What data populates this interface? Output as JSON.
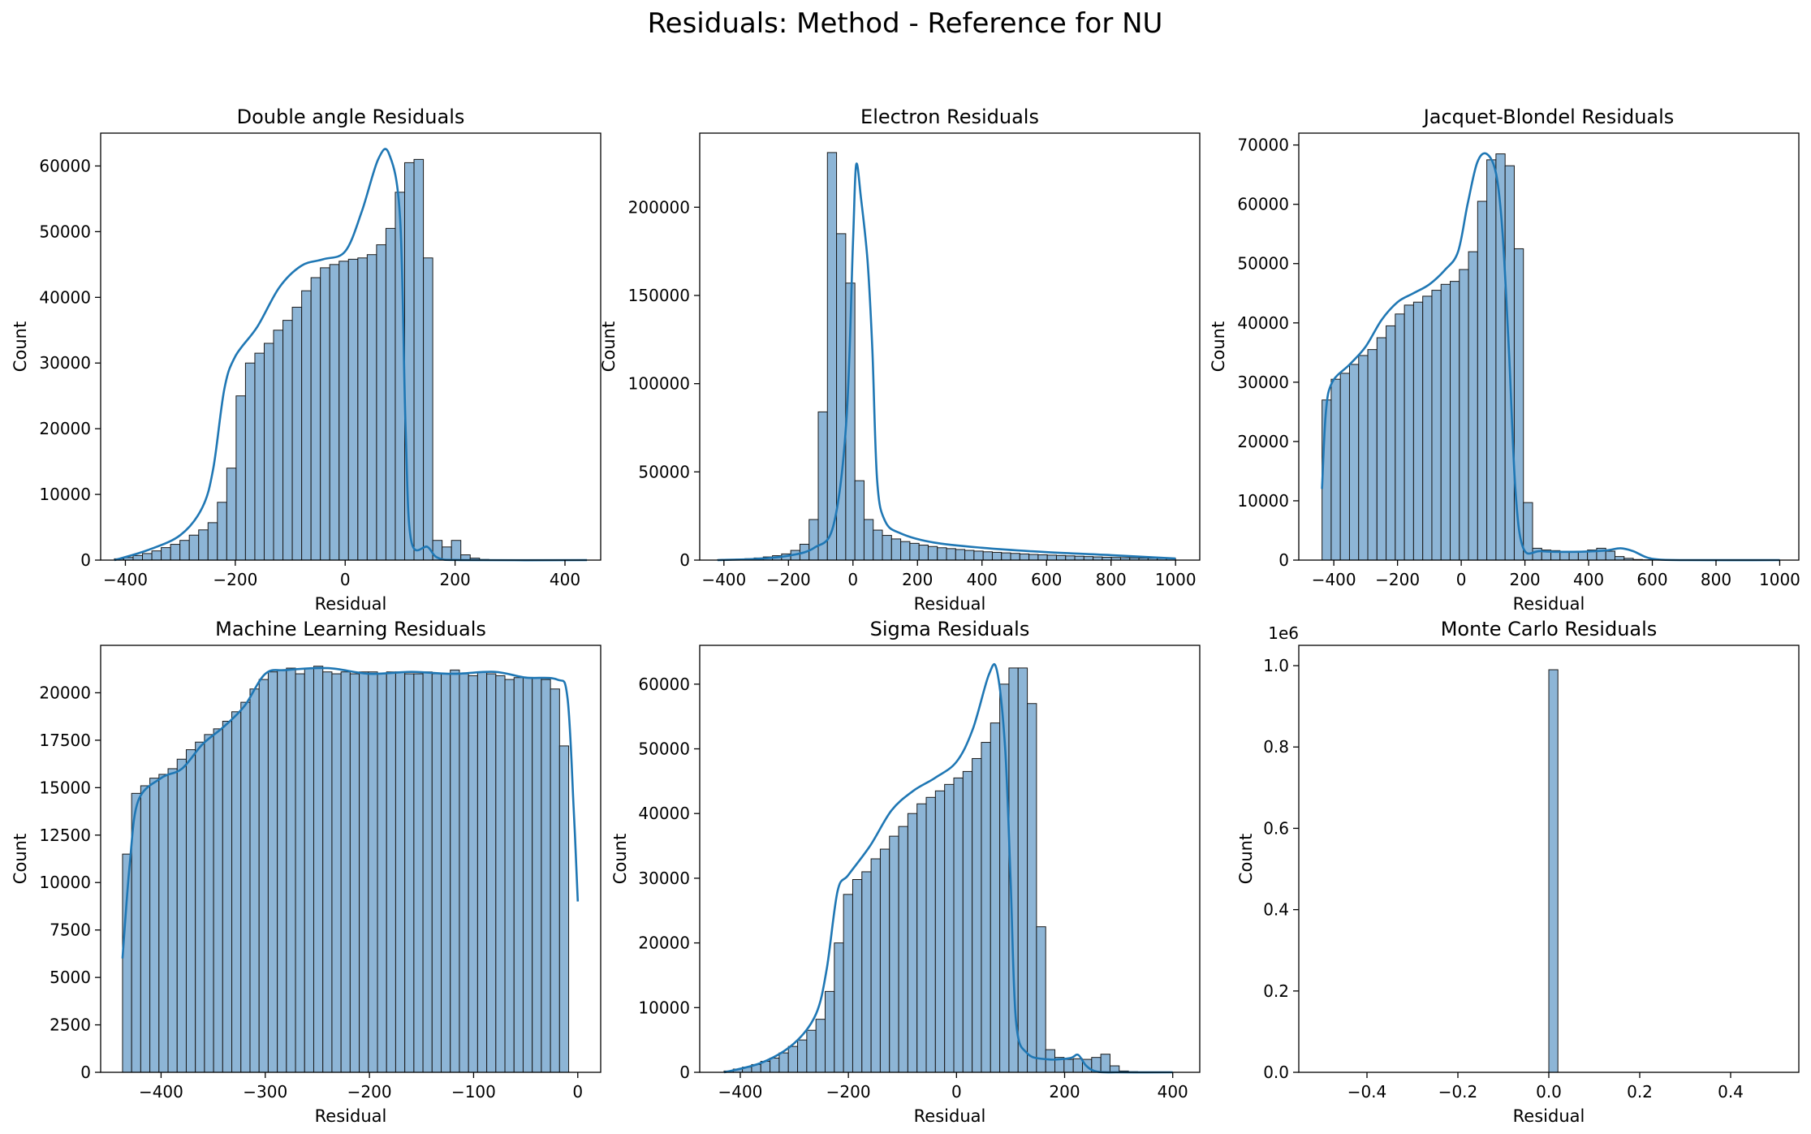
{
  "figure": {
    "title": "Residuals: Method - Reference for NU"
  },
  "colors": {
    "bar_fill": "#8db5d6",
    "bar_edge": "#1a1a1a",
    "kde": "#1f77b4",
    "axes": "#000000"
  },
  "chart_data": [
    {
      "type": "bar",
      "title": "Double angle Residuals",
      "xlabel": "Residual",
      "ylabel": "Count",
      "xlim": [
        -445,
        465
      ],
      "ylim": [
        0,
        65000
      ],
      "xticks": [
        -400,
        -200,
        0,
        200,
        400
      ],
      "xtick_labels": [
        "−400",
        "−200",
        "0",
        "200",
        "400"
      ],
      "yticks": [
        0,
        10000,
        20000,
        30000,
        40000,
        50000,
        60000
      ],
      "ytick_labels": [
        "0",
        "10000",
        "20000",
        "30000",
        "40000",
        "50000",
        "60000"
      ],
      "y_offset_label": "",
      "bin_start": -420,
      "bin_width": 17.04,
      "values": [
        200,
        400,
        700,
        1000,
        1400,
        1900,
        2400,
        3000,
        3800,
        4600,
        5700,
        8800,
        14000,
        25000,
        30000,
        31500,
        33000,
        35000,
        36500,
        38500,
        41000,
        43000,
        44500,
        45000,
        45500,
        45800,
        46000,
        46500,
        48000,
        50500,
        56000,
        60500,
        61000,
        46000,
        3000,
        2000,
        3000,
        800,
        300,
        100,
        50,
        20,
        0,
        0,
        0,
        0,
        0,
        0,
        0,
        0
      ],
      "kde": [
        [
          -420,
          0
        ],
        [
          -360,
          1500
        ],
        [
          -300,
          3800
        ],
        [
          -260,
          8000
        ],
        [
          -240,
          14000
        ],
        [
          -220,
          26000
        ],
        [
          -200,
          31000
        ],
        [
          -160,
          35500
        ],
        [
          -120,
          41500
        ],
        [
          -80,
          44800
        ],
        [
          -40,
          45800
        ],
        [
          0,
          47000
        ],
        [
          30,
          53000
        ],
        [
          60,
          61000
        ],
        [
          80,
          61800
        ],
        [
          100,
          52000
        ],
        [
          110,
          20000
        ],
        [
          120,
          3000
        ],
        [
          150,
          2000
        ],
        [
          170,
          300
        ],
        [
          220,
          0
        ],
        [
          440,
          0
        ]
      ]
    },
    {
      "type": "bar",
      "title": "Electron Residuals",
      "xlabel": "Residual",
      "ylabel": "Count",
      "xlim": [
        -475,
        1075
      ],
      "ylim": [
        0,
        242000
      ],
      "xticks": [
        -400,
        -200,
        0,
        200,
        400,
        600,
        800,
        1000
      ],
      "xtick_labels": [
        "−400",
        "−200",
        "0",
        "200",
        "400",
        "600",
        "800",
        "1000"
      ],
      "yticks": [
        0,
        50000,
        100000,
        150000,
        200000
      ],
      "ytick_labels": [
        "0",
        "50000",
        "100000",
        "150000",
        "200000"
      ],
      "y_offset_label": "",
      "bin_start": -420,
      "bin_width": 28.4,
      "values": [
        200,
        300,
        500,
        800,
        1200,
        1800,
        2500,
        3500,
        5500,
        9000,
        23000,
        84000,
        231000,
        185000,
        157000,
        45000,
        23000,
        17000,
        14000,
        12000,
        10500,
        9500,
        8500,
        7700,
        7000,
        6500,
        6000,
        5500,
        5100,
        4700,
        4400,
        4100,
        3800,
        3500,
        3200,
        3000,
        2800,
        2600,
        2400,
        2200,
        2000,
        1800,
        1600,
        1500,
        1400,
        1300,
        1200,
        1100,
        1000,
        900
      ],
      "kde": [
        [
          -420,
          0
        ],
        [
          -300,
          700
        ],
        [
          -200,
          2500
        ],
        [
          -120,
          7000
        ],
        [
          -60,
          20000
        ],
        [
          -20,
          80000
        ],
        [
          0,
          180000
        ],
        [
          10,
          224000
        ],
        [
          25,
          205000
        ],
        [
          45,
          170000
        ],
        [
          60,
          120000
        ],
        [
          75,
          45000
        ],
        [
          100,
          22000
        ],
        [
          150,
          15000
        ],
        [
          250,
          10000
        ],
        [
          400,
          7000
        ],
        [
          600,
          4500
        ],
        [
          800,
          2800
        ],
        [
          1000,
          900
        ]
      ]
    },
    {
      "type": "bar",
      "title": "Jacquet-Blondel Residuals",
      "xlabel": "Residual",
      "ylabel": "Count",
      "xlim": [
        -510,
        1060
      ],
      "ylim": [
        0,
        72000
      ],
      "xticks": [
        -400,
        -200,
        0,
        200,
        400,
        600,
        800,
        1000
      ],
      "xtick_labels": [
        "−400",
        "−200",
        "0",
        "200",
        "400",
        "600",
        "800",
        "1000"
      ],
      "yticks": [
        0,
        10000,
        20000,
        30000,
        40000,
        50000,
        60000,
        70000
      ],
      "ytick_labels": [
        "0",
        "10000",
        "20000",
        "30000",
        "40000",
        "50000",
        "60000",
        "70000"
      ],
      "y_offset_label": "",
      "bin_start": -437,
      "bin_width": 28.74,
      "values": [
        27000,
        30500,
        31500,
        33000,
        34500,
        35500,
        37500,
        39500,
        41500,
        43000,
        43500,
        44500,
        45500,
        46500,
        47000,
        49000,
        52000,
        60500,
        67500,
        68500,
        66500,
        52500,
        9700,
        2000,
        1700,
        1600,
        1500,
        1500,
        1500,
        1700,
        2000,
        1500,
        600,
        300,
        100,
        50,
        0,
        0,
        0,
        0,
        0,
        0,
        0,
        0,
        0,
        0,
        0,
        0,
        0,
        0
      ],
      "kde": [
        [
          -437,
          12000
        ],
        [
          -425,
          25000
        ],
        [
          -405,
          30000
        ],
        [
          -350,
          33000
        ],
        [
          -300,
          36000
        ],
        [
          -250,
          40500
        ],
        [
          -200,
          43500
        ],
        [
          -150,
          45000
        ],
        [
          -100,
          46500
        ],
        [
          -50,
          49000
        ],
        [
          -10,
          52000
        ],
        [
          20,
          60000
        ],
        [
          50,
          67000
        ],
        [
          80,
          68500
        ],
        [
          110,
          65000
        ],
        [
          130,
          55000
        ],
        [
          150,
          35000
        ],
        [
          170,
          12000
        ],
        [
          195,
          2000
        ],
        [
          250,
          1500
        ],
        [
          350,
          1400
        ],
        [
          450,
          1600
        ],
        [
          500,
          2000
        ],
        [
          540,
          1500
        ],
        [
          580,
          500
        ],
        [
          620,
          100
        ],
        [
          700,
          0
        ],
        [
          1000,
          0
        ]
      ]
    },
    {
      "type": "bar",
      "title": "Machine Learning Residuals",
      "xlabel": "Residual",
      "ylabel": "Count",
      "xlim": [
        -458,
        22
      ],
      "ylim": [
        0,
        22500
      ],
      "xticks": [
        -400,
        -300,
        -200,
        -100,
        0
      ],
      "xtick_labels": [
        "−400",
        "−300",
        "−200",
        "−100",
        "0"
      ],
      "yticks": [
        0,
        2500,
        5000,
        7500,
        10000,
        12500,
        15000,
        17500,
        20000
      ],
      "ytick_labels": [
        "0",
        "2500",
        "5000",
        "7500",
        "10000",
        "12500",
        "15000",
        "17500",
        "20000"
      ],
      "y_offset_label": "",
      "bin_start": -437,
      "bin_width": 8.74,
      "values": [
        11500,
        14700,
        15100,
        15500,
        15700,
        16000,
        16500,
        17000,
        17400,
        17800,
        18100,
        18500,
        19000,
        19500,
        20200,
        20700,
        21100,
        21200,
        21300,
        21000,
        21300,
        21400,
        21100,
        21000,
        21100,
        21000,
        21100,
        21100,
        21000,
        21100,
        21100,
        21000,
        21000,
        21100,
        21000,
        21000,
        21200,
        21000,
        20900,
        21100,
        21000,
        20900,
        20700,
        20800,
        20800,
        20800,
        20700,
        20200,
        17200,
        0
      ],
      "kde": [
        [
          -437,
          6000
        ],
        [
          -430,
          11000
        ],
        [
          -422,
          14300
        ],
        [
          -400,
          15500
        ],
        [
          -380,
          16000
        ],
        [
          -360,
          17300
        ],
        [
          -340,
          18200
        ],
        [
          -320,
          19300
        ],
        [
          -300,
          21000
        ],
        [
          -280,
          21200
        ],
        [
          -240,
          21300
        ],
        [
          -200,
          21000
        ],
        [
          -160,
          21100
        ],
        [
          -120,
          21000
        ],
        [
          -80,
          21100
        ],
        [
          -50,
          20800
        ],
        [
          -20,
          20700
        ],
        [
          -10,
          19800
        ],
        [
          -4,
          14000
        ],
        [
          0,
          9000
        ]
      ]
    },
    {
      "type": "bar",
      "title": "Sigma Residuals",
      "xlabel": "Residual",
      "ylabel": "Count",
      "xlim": [
        -475,
        450
      ],
      "ylim": [
        0,
        66000
      ],
      "xticks": [
        -400,
        -200,
        0,
        200,
        400
      ],
      "xtick_labels": [
        "−400",
        "−200",
        "0",
        "200",
        "400"
      ],
      "yticks": [
        0,
        10000,
        20000,
        30000,
        40000,
        50000,
        60000
      ],
      "ytick_labels": [
        "0",
        "10000",
        "20000",
        "30000",
        "40000",
        "50000",
        "60000"
      ],
      "y_offset_label": "",
      "bin_start": -430,
      "bin_width": 17.0,
      "values": [
        200,
        500,
        800,
        1200,
        1700,
        2200,
        3000,
        4000,
        5000,
        6500,
        8200,
        12500,
        20000,
        27500,
        29800,
        31000,
        33000,
        34500,
        36500,
        38000,
        40000,
        41500,
        42500,
        43500,
        44500,
        45500,
        46500,
        48500,
        51000,
        54000,
        60000,
        62500,
        62500,
        57000,
        22500,
        3500,
        2300,
        2000,
        2100,
        2000,
        2300,
        2800,
        1000,
        200,
        100,
        50,
        0,
        0,
        0,
        0
      ],
      "kde": [
        [
          -430,
          0
        ],
        [
          -360,
          1500
        ],
        [
          -300,
          4500
        ],
        [
          -260,
          9000
        ],
        [
          -240,
          16000
        ],
        [
          -220,
          28000
        ],
        [
          -200,
          30500
        ],
        [
          -160,
          35000
        ],
        [
          -120,
          40500
        ],
        [
          -80,
          43500
        ],
        [
          -40,
          45500
        ],
        [
          0,
          48000
        ],
        [
          30,
          53000
        ],
        [
          60,
          61500
        ],
        [
          75,
          62000
        ],
        [
          90,
          50000
        ],
        [
          100,
          30000
        ],
        [
          110,
          8000
        ],
        [
          130,
          3000
        ],
        [
          170,
          2000
        ],
        [
          210,
          2200
        ],
        [
          225,
          2700
        ],
        [
          240,
          1000
        ],
        [
          260,
          100
        ],
        [
          300,
          0
        ],
        [
          400,
          0
        ]
      ]
    },
    {
      "type": "bar",
      "title": "Monte Carlo Residuals",
      "xlabel": "Residual",
      "ylabel": "Count",
      "xlim": [
        -0.55,
        0.55
      ],
      "ylim": [
        0,
        1.05
      ],
      "xticks": [
        -0.4,
        -0.2,
        0.0,
        0.2,
        0.4
      ],
      "xtick_labels": [
        "−0.4",
        "−0.2",
        "0.0",
        "0.2",
        "0.4"
      ],
      "yticks": [
        0,
        0.2,
        0.4,
        0.6,
        0.8,
        1.0
      ],
      "ytick_labels": [
        "0.0",
        "0.2",
        "0.4",
        "0.6",
        "0.8",
        "1.0"
      ],
      "y_offset_label": "1e6",
      "bin_start": -0.5,
      "bin_width": 0.02,
      "values": [
        0,
        0,
        0,
        0,
        0,
        0,
        0,
        0,
        0,
        0,
        0,
        0,
        0,
        0,
        0,
        0,
        0,
        0,
        0,
        0,
        0,
        0,
        0,
        0,
        0,
        0.99,
        0,
        0,
        0,
        0,
        0,
        0,
        0,
        0,
        0,
        0,
        0,
        0,
        0,
        0,
        0,
        0,
        0,
        0,
        0,
        0,
        0,
        0,
        0,
        0
      ],
      "kde": []
    }
  ]
}
